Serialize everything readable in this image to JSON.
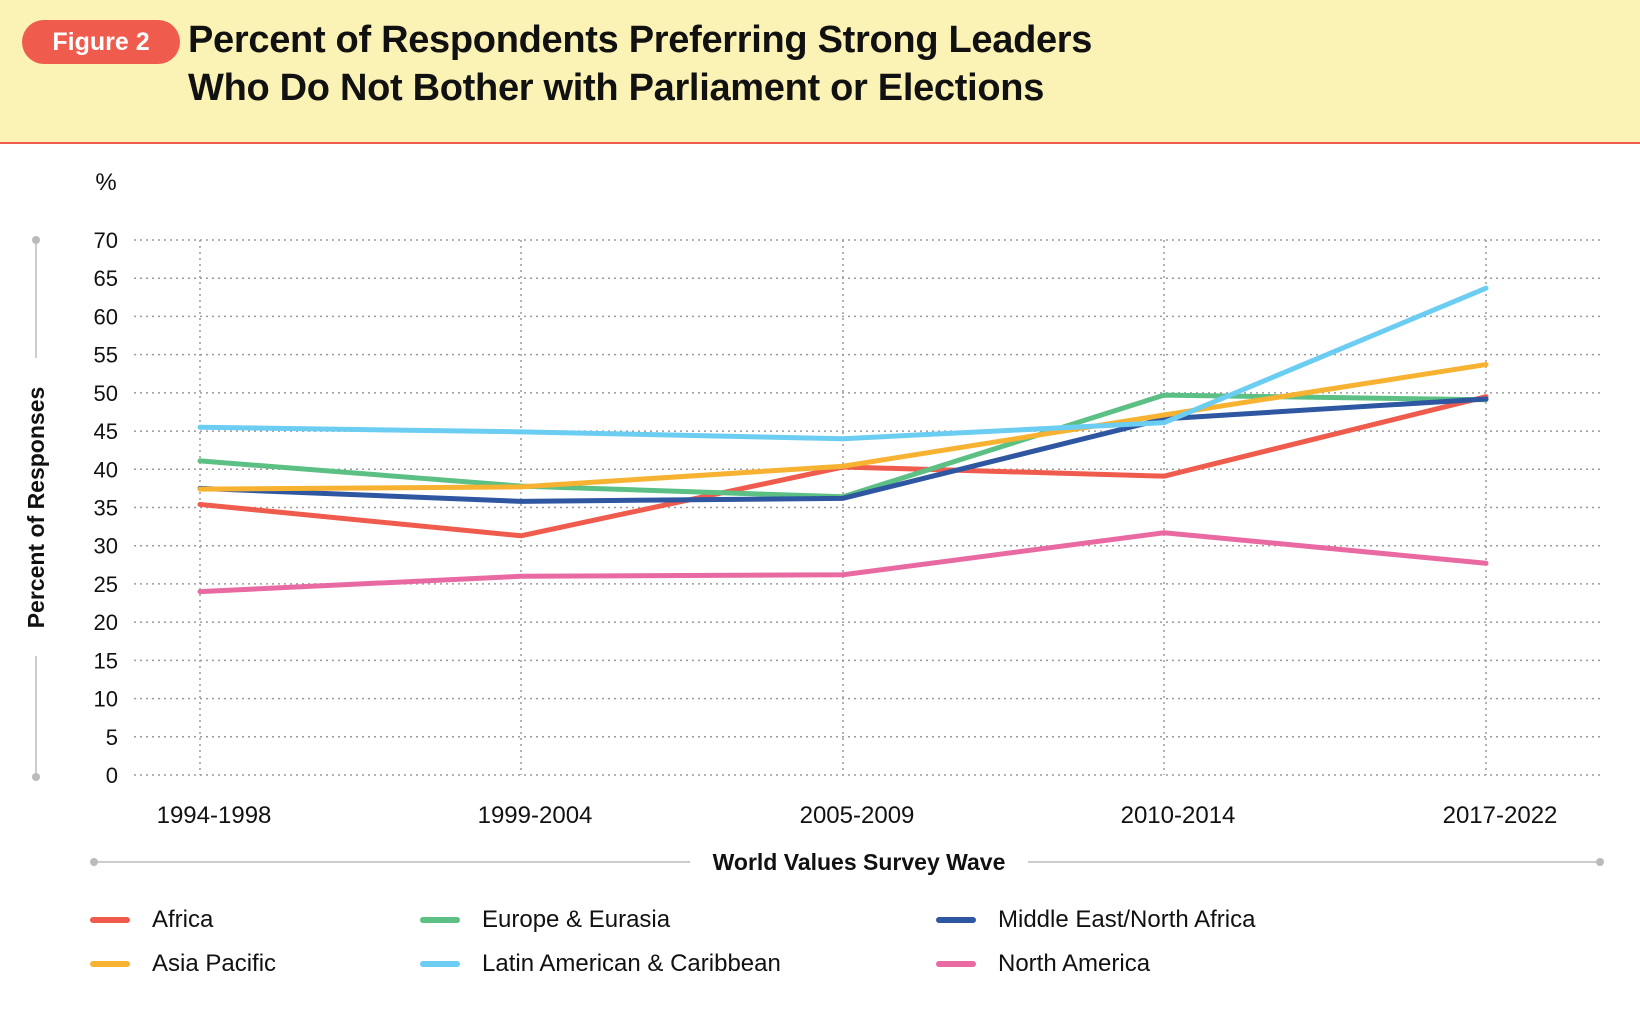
{
  "header": {
    "figure_label": "Figure 2",
    "title_line1": "Percent of Respondents Preferring Strong Leaders",
    "title_line2": "Who Do Not Bother with Parliament or Elections"
  },
  "chart_data": {
    "type": "line",
    "unit_label": "%",
    "ylabel": "Percent of Responses",
    "xlabel": "World Values Survey Wave",
    "ylim": [
      0,
      70
    ],
    "yticks": [
      0,
      5,
      10,
      15,
      20,
      25,
      30,
      35,
      40,
      45,
      50,
      55,
      60,
      65,
      70
    ],
    "categories": [
      "1994-1998",
      "1999-2004",
      "2005-2009",
      "2010-2014",
      "2017-2022"
    ],
    "grid": true,
    "legend_position": "bottom",
    "series": [
      {
        "name": "Africa",
        "color": "#ef5b4c",
        "values": [
          35.4,
          31.3,
          40.3,
          39.1,
          49.5
        ]
      },
      {
        "name": "Europe & Eurasia",
        "color": "#5cc085",
        "values": [
          41.1,
          37.8,
          36.4,
          49.7,
          49.1
        ]
      },
      {
        "name": "Middle East/North Africa",
        "color": "#2f56a0",
        "values": [
          37.5,
          35.8,
          36.2,
          46.6,
          49.2
        ]
      },
      {
        "name": "Asia Pacific",
        "color": "#f7b232",
        "values": [
          37.4,
          37.7,
          40.4,
          47.1,
          53.7
        ]
      },
      {
        "name": "Latin American & Caribbean",
        "color": "#6ccdf2",
        "values": [
          45.5,
          44.9,
          44.0,
          46.1,
          63.7
        ]
      },
      {
        "name": "North America",
        "color": "#e96aa3",
        "values": [
          24.0,
          26.0,
          26.2,
          31.7,
          27.7
        ]
      }
    ]
  }
}
